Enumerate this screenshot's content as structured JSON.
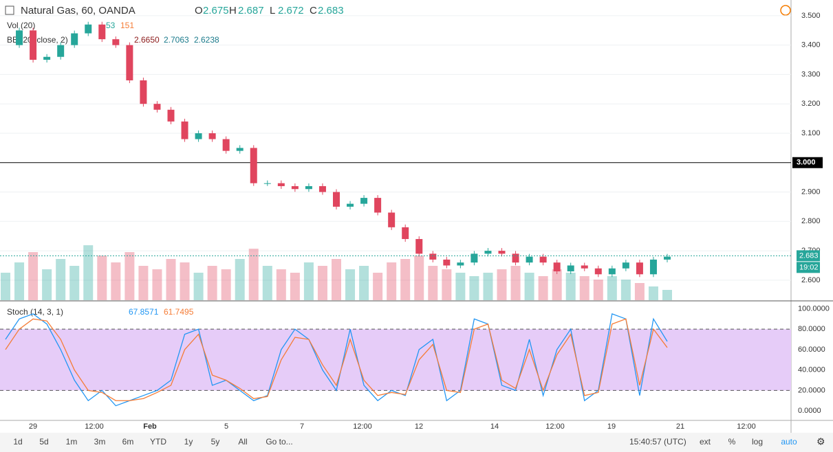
{
  "title": "Natural Gas, 60, OANDA",
  "ohlc": {
    "o_label": "O",
    "o": "2.675",
    "h_label": "H",
    "h": "2.687",
    "l_label": "L",
    "l": "2.672",
    "c_label": "C",
    "c": "2.683"
  },
  "vol_legend": {
    "name": "Vol (20)",
    "v1": "53",
    "v2": "151"
  },
  "bb_legend": {
    "name": "BB (20, close, 2)",
    "mid": "2.6650",
    "upper": "2.7063",
    "lower": "2.6238"
  },
  "stoch_legend": {
    "name": "Stoch (14, 3, 1)",
    "k": "67.8571",
    "d": "61.7495"
  },
  "chart_data": {
    "type": "candlestick",
    "close": [
      3.4,
      3.45,
      3.35,
      3.36,
      3.4,
      3.44,
      3.47,
      3.42,
      3.4,
      3.28,
      3.2,
      3.18,
      3.14,
      3.08,
      3.1,
      3.08,
      3.04,
      3.05,
      2.93,
      2.93,
      2.92,
      2.91,
      2.92,
      2.9,
      2.85,
      2.86,
      2.88,
      2.83,
      2.78,
      2.74,
      2.69,
      2.67,
      2.65,
      2.66,
      2.69,
      2.7,
      2.69,
      2.66,
      2.68,
      2.66,
      2.63,
      2.65,
      2.64,
      2.62,
      2.64,
      2.66,
      2.62,
      2.67,
      2.68
    ],
    "volume": [
      40,
      55,
      70,
      45,
      60,
      50,
      80,
      65,
      55,
      70,
      50,
      45,
      60,
      55,
      40,
      50,
      45,
      60,
      75,
      50,
      45,
      40,
      55,
      50,
      60,
      45,
      50,
      40,
      55,
      60,
      65,
      50,
      45,
      40,
      35,
      40,
      45,
      50,
      40,
      35,
      45,
      40,
      35,
      30,
      35,
      30,
      25,
      20,
      15
    ],
    "up_color": "#26a69a",
    "down_color": "#e0455e",
    "ylim": [
      2.5599,
      3.5301
    ],
    "yticks": [
      {
        "value": 3.5,
        "label": "3.500"
      },
      {
        "value": 3.4,
        "label": "3.400"
      },
      {
        "value": 3.3,
        "label": "3.300"
      },
      {
        "value": 3.2,
        "label": "3.200"
      },
      {
        "value": 3.1,
        "label": "3.100"
      },
      {
        "value": 2.9,
        "label": "2.900"
      },
      {
        "value": 2.8,
        "label": "2.800"
      },
      {
        "value": 2.7,
        "label": "2.700"
      },
      {
        "value": 2.6,
        "label": "2.600"
      }
    ],
    "hline": {
      "value": 3.0,
      "label": "3.000"
    },
    "last_price": {
      "value": 2.683,
      "label": "2.683"
    },
    "countdown": "19:02",
    "x_labels": [
      "29",
      "12:00",
      "Feb",
      "5",
      "7",
      "12:00",
      "12",
      "14",
      "12:00",
      "19",
      "21",
      "12:00"
    ]
  },
  "stoch_data": {
    "type": "line",
    "series": [
      {
        "name": "%K",
        "color": "#2196f3",
        "values": [
          70,
          90,
          95,
          85,
          60,
          30,
          10,
          20,
          5,
          10,
          15,
          20,
          30,
          75,
          80,
          25,
          30,
          20,
          10,
          15,
          60,
          80,
          70,
          40,
          20,
          80,
          25,
          10,
          20,
          15,
          60,
          70,
          10,
          20,
          90,
          85,
          25,
          20,
          70,
          15,
          60,
          80,
          10,
          20,
          95,
          90,
          15,
          90,
          68
        ]
      },
      {
        "name": "%D",
        "color": "#f57c36",
        "values": [
          60,
          80,
          90,
          88,
          70,
          40,
          20,
          18,
          10,
          10,
          12,
          18,
          25,
          60,
          75,
          35,
          30,
          22,
          12,
          14,
          50,
          72,
          70,
          45,
          25,
          70,
          30,
          15,
          18,
          16,
          50,
          65,
          20,
          18,
          80,
          85,
          30,
          22,
          60,
          20,
          55,
          75,
          15,
          18,
          85,
          90,
          25,
          80,
          62
        ]
      }
    ],
    "ylim": [
      -8,
      105
    ],
    "yticks": [
      {
        "value": 100,
        "label": "100.0000"
      },
      {
        "value": 80,
        "label": "80.0000"
      },
      {
        "value": 60,
        "label": "60.0000"
      },
      {
        "value": 40,
        "label": "40.0000"
      },
      {
        "value": 20,
        "label": "20.0000"
      },
      {
        "value": 0,
        "label": "0.0000"
      }
    ],
    "band": [
      20,
      80
    ]
  },
  "toolbar": [
    "1d",
    "5d",
    "1m",
    "3m",
    "6m",
    "YTD",
    "1y",
    "5y",
    "All",
    "Go to..."
  ],
  "clock": "15:40:57 (UTC)",
  "right_tools": [
    "ext",
    "%",
    "log",
    "auto"
  ]
}
